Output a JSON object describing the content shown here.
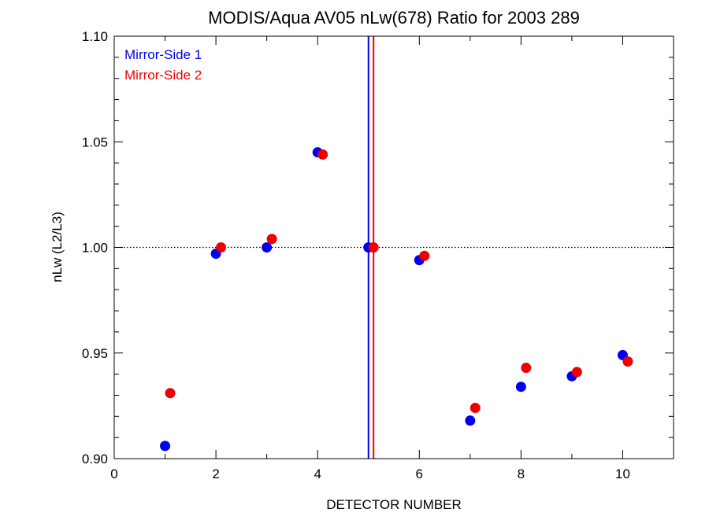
{
  "chart_data": {
    "type": "scatter",
    "title": "MODIS/Aqua AV05 nLw(678) Ratio for 2003 289",
    "xlabel": "DETECTOR NUMBER",
    "ylabel": "nLw (L2/L3)",
    "xlim": [
      0,
      11
    ],
    "ylim": [
      0.9,
      1.1
    ],
    "x_ticks": [
      0,
      2,
      4,
      6,
      8,
      10
    ],
    "x_tick_labels": [
      "0",
      "2",
      "4",
      "6",
      "8",
      "10"
    ],
    "y_ticks": [
      0.9,
      0.95,
      1.0,
      1.05,
      1.1
    ],
    "y_tick_labels": [
      "0.90",
      "0.95",
      "1.00",
      "1.05",
      "1.10"
    ],
    "reference_line_y": 1.0,
    "vertical_lines": [
      {
        "x": 5.0,
        "color": "#0000ee"
      },
      {
        "x": 5.1,
        "color": "#ee0000"
      }
    ],
    "legend_position": "top-left",
    "series": [
      {
        "name": "Mirror-Side 1",
        "color": "#0000ee",
        "points": [
          {
            "x": 1,
            "y": 0.906
          },
          {
            "x": 2,
            "y": 0.997
          },
          {
            "x": 3,
            "y": 1.0
          },
          {
            "x": 4,
            "y": 1.045
          },
          {
            "x": 5,
            "y": 1.0
          },
          {
            "x": 6,
            "y": 0.994
          },
          {
            "x": 7,
            "y": 0.918
          },
          {
            "x": 8,
            "y": 0.934
          },
          {
            "x": 9,
            "y": 0.939
          },
          {
            "x": 10,
            "y": 0.949
          }
        ]
      },
      {
        "name": "Mirror-Side 2",
        "color": "#ee0000",
        "points": [
          {
            "x": 1.1,
            "y": 0.931
          },
          {
            "x": 2.1,
            "y": 1.0
          },
          {
            "x": 3.1,
            "y": 1.004
          },
          {
            "x": 4.1,
            "y": 1.044
          },
          {
            "x": 5.1,
            "y": 1.0
          },
          {
            "x": 6.1,
            "y": 0.996
          },
          {
            "x": 7.1,
            "y": 0.924
          },
          {
            "x": 8.1,
            "y": 0.943
          },
          {
            "x": 9.1,
            "y": 0.941
          },
          {
            "x": 10.1,
            "y": 0.946
          }
        ]
      }
    ]
  }
}
